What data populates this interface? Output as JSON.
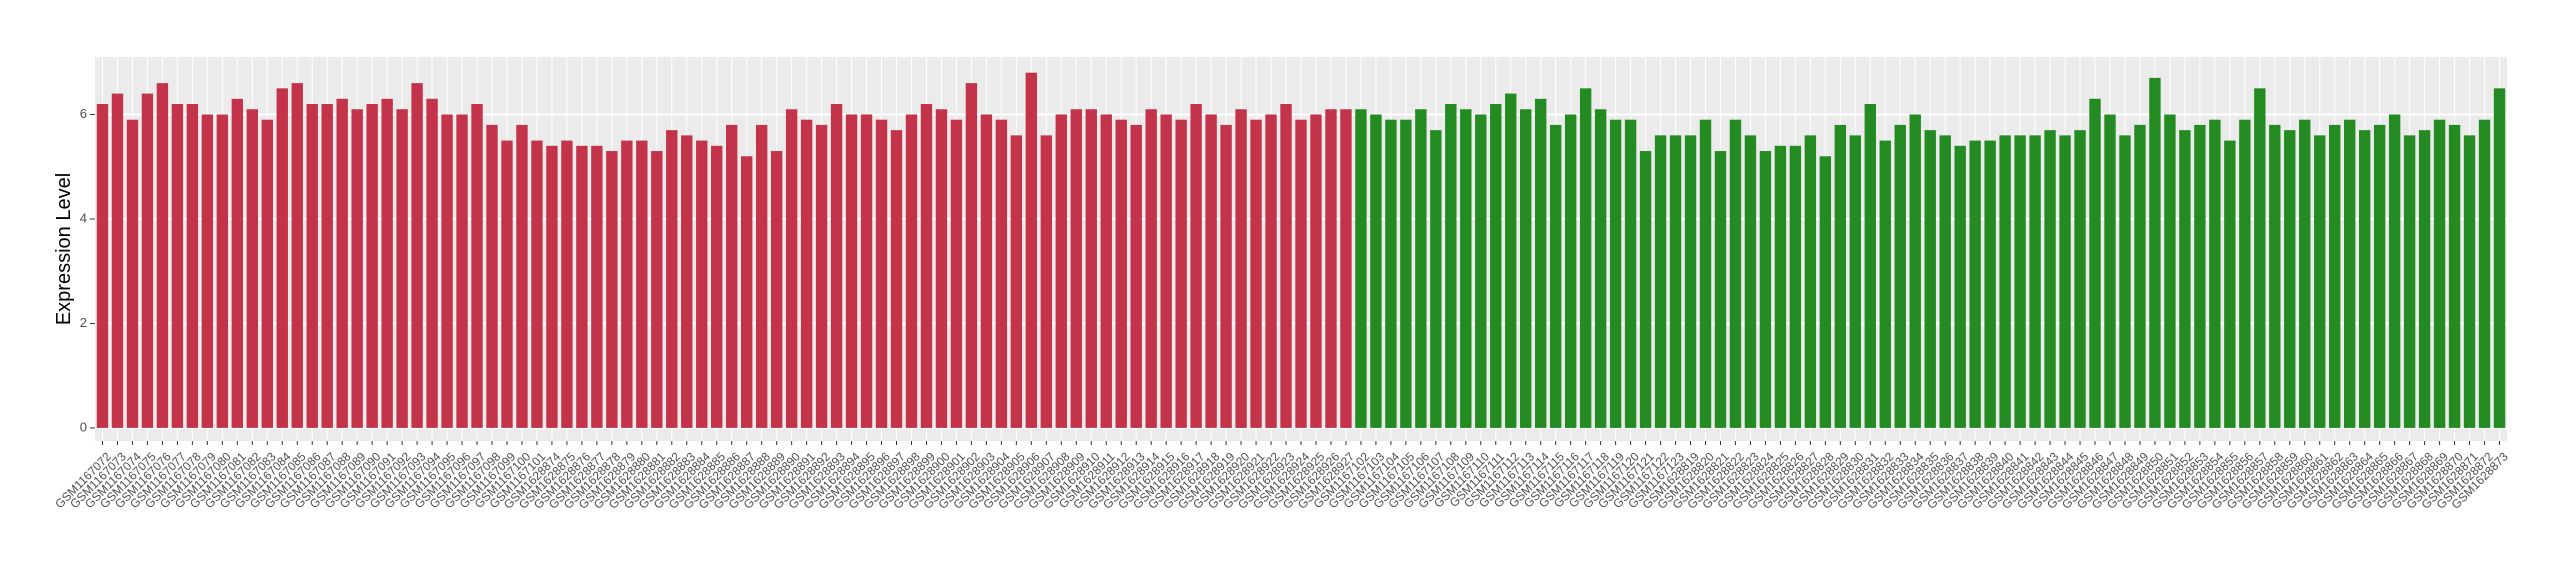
{
  "chart_data": {
    "type": "bar",
    "y_label": "Expression Level",
    "categories": [
      "GSM1167072",
      "GSM1167073",
      "GSM1167074",
      "GSM1167075",
      "GSM1167076",
      "GSM1167077",
      "GSM1167078",
      "GSM1167079",
      "GSM1167080",
      "GSM1167081",
      "GSM1167082",
      "GSM1167083",
      "GSM1167084",
      "GSM1167085",
      "GSM1167086",
      "GSM1167087",
      "GSM1167088",
      "GSM1167089",
      "GSM1167090",
      "GSM1167091",
      "GSM1167092",
      "GSM1167093",
      "GSM1167094",
      "GSM1167095",
      "GSM1167096",
      "GSM1167097",
      "GSM1167098",
      "GSM1167099",
      "GSM1167100",
      "GSM1167101",
      "GSM1628874",
      "GSM1628875",
      "GSM1628876",
      "GSM1628877",
      "GSM1628878",
      "GSM1628879",
      "GSM1628880",
      "GSM1628881",
      "GSM1628882",
      "GSM1628883",
      "GSM1628884",
      "GSM1628885",
      "GSM1628886",
      "GSM1628887",
      "GSM1628888",
      "GSM1628889",
      "GSM1628890",
      "GSM1628891",
      "GSM1628892",
      "GSM1628893",
      "GSM1628894",
      "GSM1628895",
      "GSM1628896",
      "GSM1628897",
      "GSM1628898",
      "GSM1628899",
      "GSM1628900",
      "GSM1628901",
      "GSM1628902",
      "GSM1628903",
      "GSM1628904",
      "GSM1628905",
      "GSM1628906",
      "GSM1628907",
      "GSM1628908",
      "GSM1628909",
      "GSM1628910",
      "GSM1628911",
      "GSM1628912",
      "GSM1628913",
      "GSM1628914",
      "GSM1628915",
      "GSM1628916",
      "GSM1628917",
      "GSM1628918",
      "GSM1628919",
      "GSM1628920",
      "GSM1628921",
      "GSM1628922",
      "GSM1628923",
      "GSM1628924",
      "GSM1628925",
      "GSM1628926",
      "GSM1628927",
      "GSM1167102",
      "GSM1167103",
      "GSM1167104",
      "GSM1167105",
      "GSM1167106",
      "GSM1167107",
      "GSM1167108",
      "GSM1167109",
      "GSM1167110",
      "GSM1167111",
      "GSM1167112",
      "GSM1167113",
      "GSM1167114",
      "GSM1167115",
      "GSM1167116",
      "GSM1167117",
      "GSM1167118",
      "GSM1167119",
      "GSM1167120",
      "GSM1167121",
      "GSM1167122",
      "GSM1167123",
      "GSM1628819",
      "GSM1628820",
      "GSM1628821",
      "GSM1628822",
      "GSM1628823",
      "GSM1628824",
      "GSM1628825",
      "GSM1628826",
      "GSM1628827",
      "GSM1628828",
      "GSM1628829",
      "GSM1628830",
      "GSM1628831",
      "GSM1628832",
      "GSM1628833",
      "GSM1628834",
      "GSM1628835",
      "GSM1628836",
      "GSM1628837",
      "GSM1628838",
      "GSM1628839",
      "GSM1628840",
      "GSM1628841",
      "GSM1628842",
      "GSM1628843",
      "GSM1628844",
      "GSM1628845",
      "GSM1628846",
      "GSM1628847",
      "GSM1628848",
      "GSM1628849",
      "GSM1628850",
      "GSM1628851",
      "GSM1628852",
      "GSM1628853",
      "GSM1628854",
      "GSM1628855",
      "GSM1628856",
      "GSM1628857",
      "GSM1628858",
      "GSM1628859",
      "GSM1628860",
      "GSM1628861",
      "GSM1628862",
      "GSM1628863",
      "GSM1628864",
      "GSM1628865",
      "GSM1628866",
      "GSM1628867",
      "GSM1628868",
      "GSM1628869",
      "GSM1628870",
      "GSM1628871",
      "GSM1628872",
      "GSM1628873"
    ],
    "series": [
      {
        "color": "#c3344a",
        "values": [
          6.2,
          6.4,
          5.9,
          6.4,
          6.6,
          6.2,
          6.2,
          6.0,
          6.0,
          6.3,
          6.1,
          5.9,
          6.5,
          6.6,
          6.2,
          6.2,
          6.3,
          6.1,
          6.2,
          6.3,
          6.1,
          6.6,
          6.3,
          6.0,
          6.0,
          6.2,
          5.8,
          5.5,
          5.8,
          5.5,
          5.4,
          5.5,
          5.4,
          5.4,
          5.3,
          5.5,
          5.5,
          5.3,
          5.7,
          5.6,
          5.5,
          5.4,
          5.8,
          5.2,
          5.8,
          5.3,
          6.1,
          5.9,
          5.8,
          6.2,
          6.0,
          6.0,
          5.9,
          5.7,
          6.0,
          6.2,
          6.1,
          5.9,
          6.6,
          6.0,
          5.9,
          5.6,
          6.8,
          5.6,
          6.0,
          6.1,
          6.1,
          6.0,
          5.9,
          5.8,
          6.1,
          6.0,
          5.9,
          6.2,
          6.0,
          5.8,
          6.1,
          5.9,
          6.0,
          6.2,
          5.9,
          6.0,
          6.1,
          6.1,
          null,
          null,
          null,
          null,
          null,
          null,
          null,
          null,
          null,
          null,
          null,
          null,
          null,
          null,
          null,
          null,
          null,
          null,
          null,
          null,
          null,
          null,
          null,
          null,
          null,
          null,
          null,
          null,
          null,
          null,
          null,
          null,
          null,
          null,
          null,
          null,
          null,
          null,
          null,
          null,
          null,
          null,
          null,
          null,
          null,
          null,
          null,
          null,
          null,
          null,
          null,
          null,
          null,
          null,
          null,
          null,
          null,
          null,
          null,
          null,
          null,
          null,
          null,
          null,
          null,
          null,
          null,
          null,
          null,
          null,
          null,
          null,
          null,
          null,
          null,
          null,
          null
        ]
      },
      {
        "color": "#238b22",
        "values": [
          null,
          null,
          null,
          null,
          null,
          null,
          null,
          null,
          null,
          null,
          null,
          null,
          null,
          null,
          null,
          null,
          null,
          null,
          null,
          null,
          null,
          null,
          null,
          null,
          null,
          null,
          null,
          null,
          null,
          null,
          null,
          null,
          null,
          null,
          null,
          null,
          null,
          null,
          null,
          null,
          null,
          null,
          null,
          null,
          null,
          null,
          null,
          null,
          null,
          null,
          null,
          null,
          null,
          null,
          null,
          null,
          null,
          null,
          null,
          null,
          null,
          null,
          null,
          null,
          null,
          null,
          null,
          null,
          null,
          null,
          null,
          null,
          null,
          null,
          null,
          null,
          null,
          null,
          null,
          null,
          null,
          null,
          null,
          null,
          6.1,
          6.0,
          5.9,
          5.9,
          6.1,
          5.7,
          6.2,
          6.1,
          6.0,
          6.2,
          6.4,
          6.1,
          6.3,
          5.8,
          6.0,
          6.5,
          6.1,
          5.9,
          5.9,
          5.3,
          5.6,
          5.6,
          5.6,
          5.9,
          5.3,
          5.9,
          5.6,
          5.3,
          5.4,
          5.4,
          5.6,
          5.2,
          5.8,
          5.6,
          6.2,
          5.5,
          5.8,
          6.0,
          5.7,
          5.6,
          5.4,
          5.5,
          5.5,
          5.6,
          5.6,
          5.6,
          5.7,
          5.6,
          5.7,
          6.3,
          6.0,
          5.6,
          5.8,
          6.7,
          6.0,
          5.7,
          5.8,
          5.9,
          5.5,
          5.9,
          6.5,
          5.8,
          5.7,
          5.9,
          5.6,
          5.8,
          5.9,
          5.7,
          5.8,
          6.0,
          5.6,
          5.7,
          5.9,
          5.8,
          5.6,
          5.9,
          6.5
        ]
      }
    ],
    "ylim": [
      -0.25,
      7.1
    ],
    "yticks": [
      0,
      2,
      4,
      6
    ],
    "grid": true,
    "background": "#ebebeb"
  }
}
